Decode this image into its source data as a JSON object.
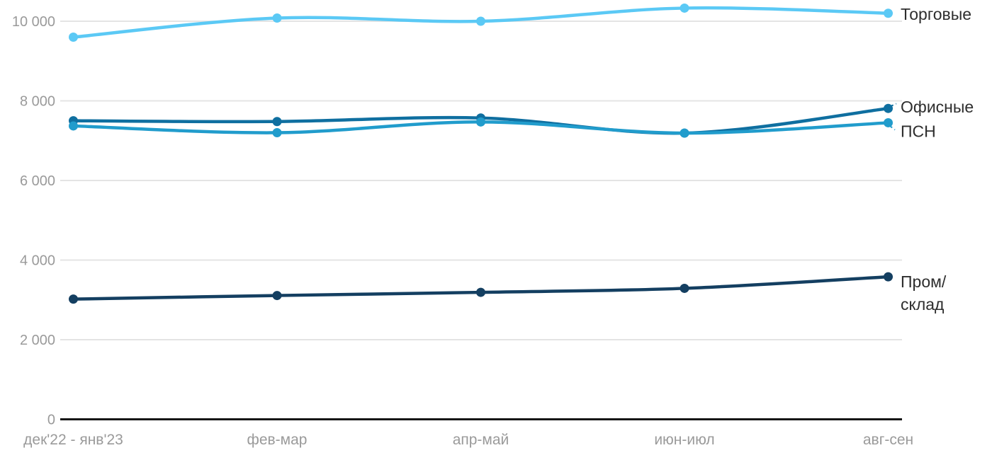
{
  "chart_data": {
    "type": "line",
    "title": "",
    "xlabel": "",
    "ylabel": "",
    "categories": [
      "дек'22 - янв'23",
      "фев-мар",
      "апр-май",
      "июн-июл",
      "авг-сен"
    ],
    "series": [
      {
        "name": "Торговые",
        "color": "#5bc9f5",
        "values": [
          9600,
          10080,
          10000,
          10330,
          10200
        ],
        "label_lines": [
          "Торговые"
        ]
      },
      {
        "name": "Офисные",
        "color": "#0f6fa0",
        "values": [
          7500,
          7480,
          7570,
          7190,
          7810
        ],
        "label_lines": [
          "Офисные"
        ]
      },
      {
        "name": "ПСН",
        "color": "#219ccc",
        "values": [
          7370,
          7200,
          7470,
          7190,
          7450
        ],
        "label_lines": [
          "ПСН"
        ]
      },
      {
        "name": "Пром/склад",
        "color": "#143f61",
        "values": [
          3020,
          3110,
          3190,
          3290,
          3580
        ],
        "label_lines": [
          "Пром/",
          "склад"
        ]
      }
    ],
    "yticks": [
      0,
      2000,
      4000,
      6000,
      8000,
      10000
    ],
    "ytick_labels": [
      "0",
      "2 000",
      "4 000",
      "6 000",
      "8 000",
      "10 000"
    ],
    "ylim": [
      0,
      10500
    ],
    "grid": true,
    "legend_position": "right-end-labels",
    "colors": {
      "grid": "#e4e4e4",
      "axis_line": "#161616",
      "tick_text": "#9a9a9a",
      "label_text": "#2e2e2e",
      "background": "#ffffff"
    }
  }
}
